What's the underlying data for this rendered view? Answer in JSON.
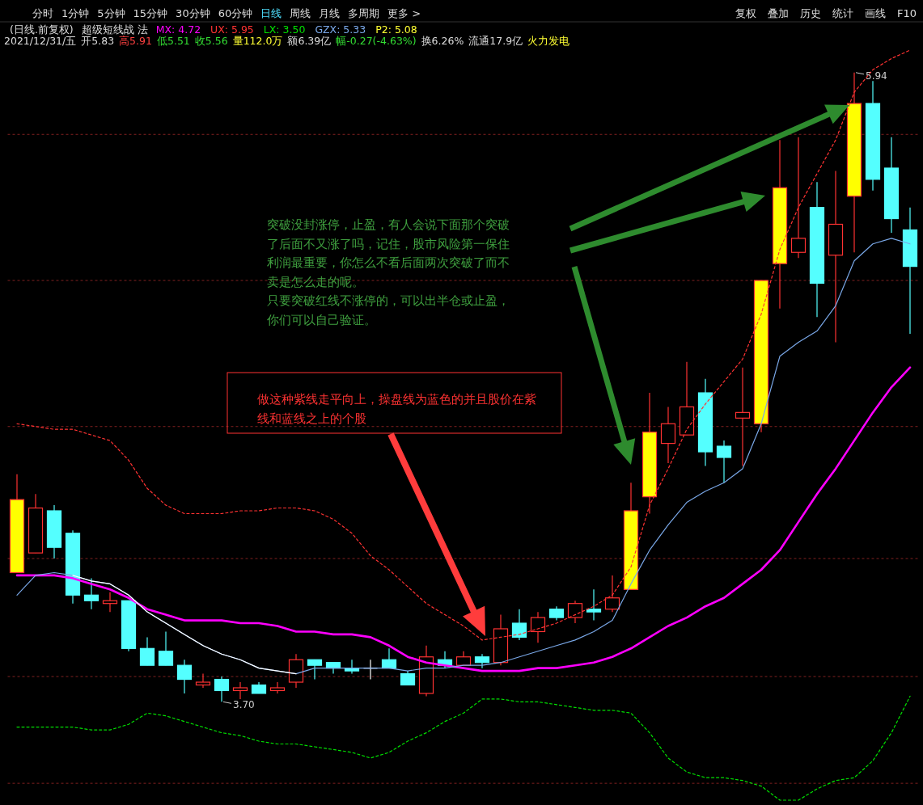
{
  "chart_data": {
    "type": "candlestick",
    "categories": [
      null,
      null,
      null,
      null,
      null,
      null,
      null,
      null,
      null,
      null,
      null,
      null,
      null,
      null,
      null,
      null,
      null,
      null,
      null,
      null,
      null,
      null,
      null,
      null,
      null,
      null,
      null,
      null,
      null,
      null,
      null,
      null,
      null,
      null,
      null,
      null,
      null,
      null,
      null,
      null,
      null,
      null,
      null,
      null,
      null,
      null,
      null,
      null,
      null
    ],
    "ohlc": [
      [
        4.16,
        4.51,
        4.16,
        4.42
      ],
      [
        4.23,
        4.44,
        4.23,
        4.39
      ],
      [
        4.38,
        4.4,
        4.21,
        4.25
      ],
      [
        4.3,
        4.31,
        4.05,
        4.08
      ],
      [
        4.08,
        4.14,
        4.03,
        4.06
      ],
      [
        4.05,
        4.09,
        4.02,
        4.06
      ],
      [
        4.06,
        4.06,
        3.88,
        3.89
      ],
      [
        3.89,
        3.93,
        3.83,
        3.83
      ],
      [
        3.88,
        3.95,
        3.83,
        3.83
      ],
      [
        3.83,
        3.85,
        3.73,
        3.78
      ],
      [
        3.76,
        3.8,
        3.75,
        3.77
      ],
      [
        3.78,
        3.79,
        3.7,
        3.74
      ],
      [
        3.74,
        3.77,
        3.71,
        3.75
      ],
      [
        3.76,
        3.77,
        3.73,
        3.73
      ],
      [
        3.74,
        3.77,
        3.73,
        3.75
      ],
      [
        3.77,
        3.87,
        3.75,
        3.85
      ],
      [
        3.85,
        3.85,
        3.78,
        3.83
      ],
      [
        3.84,
        3.84,
        3.8,
        3.82
      ],
      [
        3.82,
        3.85,
        3.8,
        3.81
      ],
      [
        3.82,
        3.85,
        3.78,
        3.82
      ],
      [
        3.85,
        3.89,
        3.82,
        3.82
      ],
      [
        3.8,
        3.81,
        3.76,
        3.76
      ],
      [
        3.73,
        3.9,
        3.72,
        3.86
      ],
      [
        3.85,
        3.88,
        3.82,
        3.83
      ],
      [
        3.83,
        3.88,
        3.83,
        3.86
      ],
      [
        3.86,
        3.87,
        3.82,
        3.84
      ],
      [
        3.84,
        4.01,
        3.83,
        3.96
      ],
      [
        3.98,
        4.03,
        3.92,
        3.93
      ],
      [
        3.95,
        4.02,
        3.91,
        4.0
      ],
      [
        4.03,
        4.04,
        3.99,
        4.0
      ],
      [
        4.0,
        4.06,
        3.98,
        4.05
      ],
      [
        4.03,
        4.1,
        3.99,
        4.02
      ],
      [
        4.03,
        4.15,
        4.02,
        4.07
      ],
      [
        4.1,
        4.48,
        4.1,
        4.38
      ],
      [
        4.43,
        4.8,
        4.37,
        4.66
      ],
      [
        4.62,
        4.75,
        4.55,
        4.69
      ],
      [
        4.65,
        4.91,
        4.65,
        4.75
      ],
      [
        4.8,
        4.85,
        4.54,
        4.59
      ],
      [
        4.61,
        4.63,
        4.48,
        4.57
      ],
      [
        4.71,
        4.89,
        4.54,
        4.73
      ],
      [
        4.69,
        5.2,
        4.66,
        5.2
      ],
      [
        5.26,
        5.7,
        5.1,
        5.53
      ],
      [
        5.3,
        5.71,
        5.28,
        5.35
      ],
      [
        5.46,
        5.55,
        5.07,
        5.19
      ],
      [
        5.29,
        5.59,
        4.98,
        5.4
      ],
      [
        5.5,
        5.94,
        5.3,
        5.83
      ],
      [
        5.83,
        5.91,
        5.52,
        5.56
      ],
      [
        5.6,
        5.71,
        5.37,
        5.42
      ],
      [
        5.38,
        5.46,
        5.01,
        5.25
      ]
    ],
    "colors": [
      "#ffff00",
      "#ff3232",
      "#54ffff",
      "#54ffff",
      "#54ffff",
      "#ff3232",
      "#54ffff",
      "#54ffff",
      "#54ffff",
      "#54ffff",
      "#ff3232",
      "#54ffff",
      "#ff3232",
      "#54ffff",
      "#ff3232",
      "#ff3232",
      "#54ffff",
      "#54ffff",
      "#54ffff",
      "#ffffff",
      "#54ffff",
      "#54ffff",
      "#ff3232",
      "#54ffff",
      "#ff3232",
      "#54ffff",
      "#ff3232",
      "#54ffff",
      "#ff3232",
      "#54ffff",
      "#ff3232",
      "#54ffff",
      "#ff3232",
      "#ffff00",
      "#ffff00",
      "#ff3232",
      "#ff3232",
      "#54ffff",
      "#54ffff",
      "#ff3232",
      "#ffff00",
      "#ffff00",
      "#ff3232",
      "#54ffff",
      "#ff3232",
      "#ffff00",
      "#54ffff",
      "#54ffff",
      "#54ffff"
    ],
    "series": [
      {
        "name": "MX: 4.72",
        "type": "line",
        "color": "#ff00ff",
        "line_style": "solid",
        "values": [
          4.15,
          4.15,
          4.15,
          4.14,
          4.12,
          4.1,
          4.07,
          4.03,
          4.01,
          3.99,
          3.99,
          3.99,
          3.98,
          3.98,
          3.97,
          3.95,
          3.95,
          3.94,
          3.94,
          3.93,
          3.9,
          3.86,
          3.84,
          3.83,
          3.82,
          3.81,
          3.81,
          3.81,
          3.82,
          3.82,
          3.83,
          3.84,
          3.86,
          3.89,
          3.93,
          3.97,
          4.0,
          4.04,
          4.07,
          4.12,
          4.17,
          4.24,
          4.34,
          4.44,
          4.53,
          4.63,
          4.73,
          4.82,
          4.89
        ]
      },
      {
        "name": "UX: 5.95",
        "type": "line",
        "color": "#ff3232",
        "line_style": "dotted",
        "values": [
          4.69,
          4.68,
          4.67,
          4.67,
          4.65,
          4.63,
          4.56,
          4.46,
          4.4,
          4.37,
          4.37,
          4.37,
          4.38,
          4.38,
          4.39,
          4.39,
          4.38,
          4.35,
          4.3,
          4.22,
          4.17,
          4.11,
          4.05,
          4.01,
          3.97,
          3.92,
          3.93,
          3.94,
          3.96,
          3.98,
          4.01,
          4.04,
          4.08,
          4.18,
          4.4,
          4.53,
          4.67,
          4.76,
          4.84,
          4.92,
          5.08,
          5.31,
          5.46,
          5.58,
          5.7,
          5.87,
          5.95,
          5.99,
          6.02
        ]
      },
      {
        "name": "LX: 3.50",
        "type": "line",
        "color": "#00e000",
        "line_style": "dotted",
        "values": [
          3.61,
          3.61,
          3.61,
          3.61,
          3.6,
          3.6,
          3.62,
          3.66,
          3.65,
          3.63,
          3.61,
          3.59,
          3.58,
          3.56,
          3.55,
          3.55,
          3.54,
          3.53,
          3.52,
          3.5,
          3.52,
          3.56,
          3.59,
          3.63,
          3.66,
          3.71,
          3.71,
          3.7,
          3.7,
          3.69,
          3.68,
          3.67,
          3.67,
          3.66,
          3.59,
          3.5,
          3.45,
          3.43,
          3.43,
          3.42,
          3.4,
          3.35,
          3.35,
          3.39,
          3.42,
          3.43,
          3.49,
          3.59,
          3.72
        ]
      },
      {
        "name": "GZX: 5.33",
        "type": "line",
        "color": "#7aa8e8",
        "line_style": "solid",
        "values": [
          4.08,
          4.15,
          4.16,
          4.15,
          4.13,
          4.12,
          4.08,
          4.02,
          3.98,
          3.94,
          3.9,
          3.87,
          3.85,
          3.82,
          3.81,
          3.8,
          3.82,
          3.82,
          3.82,
          3.82,
          3.82,
          3.81,
          3.82,
          3.82,
          3.83,
          3.83,
          3.84,
          3.86,
          3.88,
          3.9,
          3.92,
          3.95,
          3.99,
          4.12,
          4.24,
          4.33,
          4.41,
          4.45,
          4.48,
          4.53,
          4.69,
          4.93,
          4.98,
          5.02,
          5.11,
          5.27,
          5.33,
          5.35,
          5.33
        ]
      },
      {
        "type": "line",
        "color": "#ffffff",
        "line_style": "solid",
        "values": [
          null,
          null,
          null,
          4.15,
          4.13,
          4.12,
          4.08,
          4.02,
          3.98,
          3.94,
          3.9,
          3.87,
          3.85,
          3.82,
          3.81,
          3.8,
          null,
          null,
          null,
          null,
          null,
          null,
          null,
          null,
          null,
          null,
          null,
          null,
          null,
          null,
          null,
          null,
          null,
          null,
          null,
          null,
          null,
          null,
          null,
          null,
          null,
          null,
          null,
          null,
          null,
          null,
          null,
          null,
          null
        ]
      }
    ],
    "ref_lines": [
      {
        "axis": "y",
        "value": 5.72,
        "color": "#802020",
        "line_style": "dotted"
      },
      {
        "axis": "y",
        "value": 5.2,
        "color": "#802020",
        "line_style": "dotted"
      },
      {
        "axis": "y",
        "value": 4.68,
        "color": "#802020",
        "line_style": "dotted"
      },
      {
        "axis": "y",
        "value": 4.21,
        "color": "#802020",
        "line_style": "dotted"
      },
      {
        "axis": "y",
        "value": 3.79,
        "color": "#802020",
        "line_style": "dotted"
      },
      {
        "axis": "y",
        "value": 3.41,
        "color": "#802020",
        "line_style": "dotted"
      }
    ],
    "annotations": [
      "分时",
      "1分钟",
      "5分钟",
      "15分钟",
      "30分钟",
      "60分钟",
      "日线",
      "周线",
      "月线",
      "多周期",
      "更多 >",
      "复权",
      "叠加",
      "历史",
      "统计",
      "画线",
      "F10",
      "(日线.前复权)",
      "超级短线战 法",
      "P2: 5.08",
      "2021/12/31/五",
      "开5.83",
      "高5.91",
      "低5.51",
      "收5.56",
      "量112.0万",
      "额6.39亿",
      "幅-0.27(-4.63%)",
      "换6.26%",
      "流通17.9亿",
      "火力发电",
      "突破没封涨停，止盈，有人会说下面那个突破了后面不又涨了吗，记住，股市风险第一保住利润最重要，你怎么不看后面两次突破了而不卖是怎么走的呢。",
      "只要突破红线不涨停的，可以出半仓或止盈，你们可以自己验证。",
      "做这种紫线走平向上，操盘线为蓝色的并且股价在紫线和蓝线之上的个股",
      "5.94",
      "3.70"
    ]
  }
}
